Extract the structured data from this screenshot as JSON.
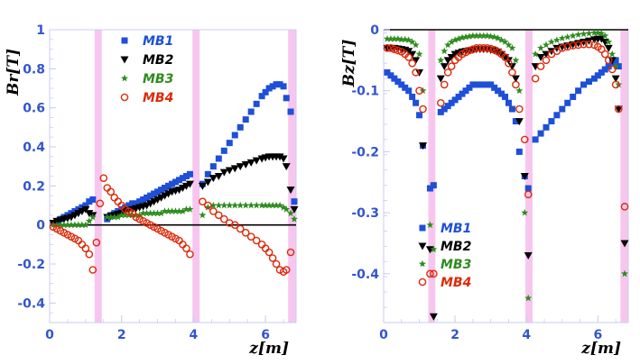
{
  "chart_data": [
    {
      "type": "scatter",
      "title": "",
      "xlabel": "z[m]",
      "ylabel": "Br[T]",
      "xlim": [
        0,
        6.85
      ],
      "ylim": [
        -0.5,
        1.0
      ],
      "x_ticks": [
        "0",
        "2",
        "4",
        "6"
      ],
      "y_ticks": [
        "-0.4",
        "-0.2",
        "0",
        "0.2",
        "0.4",
        "0.6",
        "0.8",
        "1"
      ],
      "gap_bands": [
        [
          1.25,
          1.45
        ],
        [
          3.97,
          4.17
        ],
        [
          6.63,
          6.85
        ]
      ],
      "zero_line": true,
      "legend_position": "top-center",
      "colors": {
        "MB1": "#1e4fd9",
        "MB2": "#000000",
        "MB3": "#2e8b1e",
        "MB4": "#dd2a0a",
        "gap": "#f7c6ee"
      },
      "series": [
        {
          "name": "MB1",
          "marker": "square",
          "x": [
            0.1,
            0.2,
            0.3,
            0.4,
            0.5,
            0.6,
            0.7,
            0.8,
            0.9,
            1.0,
            1.1,
            1.2,
            1.6,
            1.7,
            1.8,
            1.9,
            2.0,
            2.1,
            2.2,
            2.3,
            2.4,
            2.5,
            2.6,
            2.7,
            2.8,
            2.9,
            3.0,
            3.1,
            3.2,
            3.3,
            3.4,
            3.5,
            3.6,
            3.7,
            3.8,
            3.9,
            4.25,
            4.4,
            4.55,
            4.7,
            4.85,
            5.0,
            5.15,
            5.3,
            5.45,
            5.6,
            5.75,
            5.9,
            6.0,
            6.1,
            6.2,
            6.3,
            6.4,
            6.5,
            6.58,
            6.7,
            6.8
          ],
          "y": [
            0.01,
            0.02,
            0.03,
            0.04,
            0.05,
            0.06,
            0.07,
            0.08,
            0.09,
            0.1,
            0.12,
            0.13,
            0.03,
            0.05,
            0.06,
            0.07,
            0.08,
            0.09,
            0.1,
            0.11,
            0.11,
            0.12,
            0.13,
            0.14,
            0.15,
            0.16,
            0.17,
            0.18,
            0.19,
            0.2,
            0.21,
            0.22,
            0.23,
            0.24,
            0.25,
            0.26,
            0.21,
            0.26,
            0.3,
            0.34,
            0.38,
            0.42,
            0.46,
            0.5,
            0.54,
            0.58,
            0.62,
            0.66,
            0.68,
            0.7,
            0.71,
            0.72,
            0.72,
            0.71,
            0.65,
            0.58,
            0.12
          ]
        },
        {
          "name": "MB2",
          "marker": "triangle-down",
          "x": [
            0.1,
            0.2,
            0.3,
            0.4,
            0.5,
            0.6,
            0.7,
            0.8,
            0.9,
            1.0,
            1.1,
            1.2,
            1.6,
            1.7,
            1.8,
            1.9,
            2.0,
            2.1,
            2.2,
            2.3,
            2.4,
            2.5,
            2.6,
            2.7,
            2.8,
            2.9,
            3.0,
            3.1,
            3.2,
            3.3,
            3.4,
            3.5,
            3.6,
            3.7,
            3.8,
            3.9,
            4.25,
            4.4,
            4.55,
            4.7,
            4.85,
            5.0,
            5.15,
            5.3,
            5.45,
            5.6,
            5.75,
            5.9,
            6.0,
            6.1,
            6.2,
            6.3,
            6.4,
            6.5,
            6.58,
            6.7,
            6.8
          ],
          "y": [
            0.01,
            0.02,
            0.025,
            0.03,
            0.035,
            0.04,
            0.05,
            0.06,
            0.07,
            0.08,
            0.06,
            0.05,
            0.04,
            0.045,
            0.05,
            0.055,
            0.06,
            0.07,
            0.075,
            0.08,
            0.085,
            0.09,
            0.095,
            0.1,
            0.11,
            0.12,
            0.13,
            0.14,
            0.15,
            0.16,
            0.17,
            0.175,
            0.18,
            0.19,
            0.2,
            0.21,
            0.2,
            0.22,
            0.24,
            0.25,
            0.27,
            0.28,
            0.29,
            0.3,
            0.31,
            0.32,
            0.33,
            0.34,
            0.345,
            0.35,
            0.35,
            0.35,
            0.35,
            0.34,
            0.3,
            0.18,
            0.08
          ]
        },
        {
          "name": "MB3",
          "marker": "star",
          "x": [
            0.1,
            0.2,
            0.3,
            0.4,
            0.5,
            0.6,
            0.7,
            0.8,
            0.9,
            1.0,
            1.1,
            1.2,
            1.6,
            1.7,
            1.8,
            1.9,
            2.0,
            2.1,
            2.2,
            2.3,
            2.4,
            2.5,
            2.6,
            2.7,
            2.8,
            2.9,
            3.0,
            3.1,
            3.2,
            3.3,
            3.4,
            3.5,
            3.6,
            3.7,
            3.8,
            3.9,
            4.25,
            4.4,
            4.55,
            4.7,
            4.85,
            5.0,
            5.15,
            5.3,
            5.45,
            5.6,
            5.75,
            5.9,
            6.0,
            6.1,
            6.2,
            6.3,
            6.4,
            6.5,
            6.58,
            6.7,
            6.8
          ],
          "y": [
            0.0,
            0.0,
            0.0,
            0.0,
            0.0,
            0.0,
            0.0,
            0.0,
            0.0,
            0.0,
            0.02,
            0.04,
            0.04,
            0.04,
            0.04,
            0.04,
            0.05,
            0.05,
            0.05,
            0.05,
            0.05,
            0.05,
            0.06,
            0.06,
            0.06,
            0.06,
            0.06,
            0.06,
            0.07,
            0.07,
            0.07,
            0.07,
            0.07,
            0.07,
            0.08,
            0.08,
            0.05,
            0.09,
            0.1,
            0.1,
            0.1,
            0.1,
            0.1,
            0.1,
            0.1,
            0.1,
            0.1,
            0.1,
            0.1,
            0.1,
            0.1,
            0.1,
            0.1,
            0.09,
            0.08,
            0.06,
            0.03
          ]
        },
        {
          "name": "MB4",
          "marker": "circle-open",
          "x": [
            0.1,
            0.2,
            0.3,
            0.4,
            0.5,
            0.6,
            0.7,
            0.8,
            0.9,
            1.0,
            1.1,
            1.2,
            1.3,
            1.4,
            1.5,
            1.6,
            1.7,
            1.8,
            1.9,
            2.0,
            2.1,
            2.2,
            2.3,
            2.4,
            2.5,
            2.6,
            2.7,
            2.8,
            2.9,
            3.0,
            3.1,
            3.2,
            3.3,
            3.4,
            3.5,
            3.6,
            3.7,
            3.8,
            3.9,
            4.25,
            4.4,
            4.55,
            4.7,
            4.85,
            5.0,
            5.15,
            5.3,
            5.45,
            5.6,
            5.75,
            5.9,
            6.0,
            6.1,
            6.2,
            6.3,
            6.4,
            6.5,
            6.58,
            6.7
          ],
          "y": [
            -0.01,
            -0.02,
            -0.03,
            -0.04,
            -0.05,
            -0.06,
            -0.07,
            -0.08,
            -0.1,
            -0.12,
            -0.15,
            -0.23,
            -0.09,
            0.11,
            0.24,
            0.19,
            0.17,
            0.14,
            0.12,
            0.1,
            0.08,
            0.07,
            0.06,
            0.04,
            0.03,
            0.02,
            0.01,
            0.0,
            -0.01,
            -0.02,
            -0.03,
            -0.04,
            -0.05,
            -0.06,
            -0.07,
            -0.08,
            -0.1,
            -0.12,
            -0.15,
            0.12,
            0.1,
            0.07,
            0.05,
            0.03,
            0.01,
            0.0,
            -0.02,
            -0.04,
            -0.06,
            -0.08,
            -0.1,
            -0.12,
            -0.14,
            -0.17,
            -0.2,
            -0.23,
            -0.24,
            -0.23,
            -0.14
          ]
        }
      ]
    },
    {
      "type": "scatter",
      "title": "",
      "xlabel": "z[m]",
      "ylabel": "Bz[T]",
      "xlim": [
        0,
        6.85
      ],
      "ylim": [
        -0.48,
        0.0
      ],
      "x_ticks": [
        "0",
        "2",
        "4",
        "6"
      ],
      "y_ticks": [
        "-0.4",
        "-0.3",
        "-0.2",
        "-0.1",
        "0"
      ],
      "gap_bands": [
        [
          1.25,
          1.45
        ],
        [
          3.97,
          4.17
        ],
        [
          6.63,
          6.85
        ]
      ],
      "zero_line": true,
      "legend_position": "bottom-center",
      "colors": {
        "MB1": "#1e4fd9",
        "MB2": "#000000",
        "MB3": "#2e8b1e",
        "MB4": "#dd2a0a",
        "gap": "#f7c6ee"
      },
      "series": [
        {
          "name": "MB1",
          "marker": "square",
          "x": [
            0.1,
            0.2,
            0.3,
            0.4,
            0.5,
            0.6,
            0.7,
            0.8,
            0.9,
            1.0,
            1.1,
            1.3,
            1.4,
            1.6,
            1.7,
            1.8,
            1.9,
            2.0,
            2.1,
            2.2,
            2.3,
            2.4,
            2.5,
            2.6,
            2.7,
            2.8,
            2.9,
            3.0,
            3.1,
            3.2,
            3.3,
            3.4,
            3.5,
            3.6,
            3.7,
            3.8,
            3.95,
            4.05,
            4.25,
            4.4,
            4.55,
            4.7,
            4.85,
            5.0,
            5.15,
            5.3,
            5.45,
            5.6,
            5.75,
            5.9,
            6.0,
            6.1,
            6.2,
            6.3,
            6.4,
            6.5,
            6.58
          ],
          "y": [
            -0.07,
            -0.075,
            -0.08,
            -0.085,
            -0.09,
            -0.095,
            -0.1,
            -0.11,
            -0.12,
            -0.14,
            -0.19,
            -0.26,
            -0.255,
            -0.135,
            -0.13,
            -0.125,
            -0.12,
            -0.115,
            -0.11,
            -0.105,
            -0.1,
            -0.095,
            -0.09,
            -0.09,
            -0.09,
            -0.09,
            -0.09,
            -0.09,
            -0.095,
            -0.1,
            -0.105,
            -0.11,
            -0.12,
            -0.13,
            -0.15,
            -0.2,
            -0.24,
            -0.26,
            -0.18,
            -0.17,
            -0.16,
            -0.15,
            -0.14,
            -0.13,
            -0.12,
            -0.11,
            -0.1,
            -0.09,
            -0.085,
            -0.08,
            -0.075,
            -0.07,
            -0.065,
            -0.06,
            -0.055,
            -0.05,
            -0.06
          ]
        },
        {
          "name": "MB2",
          "marker": "triangle-down",
          "x": [
            0.1,
            0.2,
            0.3,
            0.4,
            0.5,
            0.6,
            0.7,
            0.8,
            0.9,
            1.0,
            1.1,
            1.3,
            1.4,
            1.6,
            1.7,
            1.8,
            1.9,
            2.0,
            2.1,
            2.2,
            2.3,
            2.4,
            2.5,
            2.6,
            2.7,
            2.8,
            2.9,
            3.0,
            3.1,
            3.2,
            3.3,
            3.4,
            3.5,
            3.6,
            3.7,
            3.8,
            3.95,
            4.05,
            4.25,
            4.4,
            4.55,
            4.7,
            4.85,
            5.0,
            5.15,
            5.3,
            5.45,
            5.6,
            5.75,
            5.9,
            6.0,
            6.1,
            6.2,
            6.3,
            6.4,
            6.5,
            6.58,
            6.75
          ],
          "y": [
            -0.03,
            -0.03,
            -0.03,
            -0.031,
            -0.032,
            -0.033,
            -0.035,
            -0.04,
            -0.05,
            -0.07,
            -0.19,
            -0.36,
            -0.47,
            -0.08,
            -0.06,
            -0.05,
            -0.045,
            -0.04,
            -0.038,
            -0.036,
            -0.035,
            -0.034,
            -0.033,
            -0.032,
            -0.032,
            -0.032,
            -0.032,
            -0.033,
            -0.034,
            -0.036,
            -0.04,
            -0.045,
            -0.05,
            -0.06,
            -0.08,
            -0.15,
            -0.24,
            -0.37,
            -0.06,
            -0.045,
            -0.04,
            -0.035,
            -0.03,
            -0.028,
            -0.026,
            -0.024,
            -0.022,
            -0.02,
            -0.018,
            -0.016,
            -0.015,
            -0.015,
            -0.02,
            -0.03,
            -0.05,
            -0.08,
            -0.13,
            -0.35
          ]
        },
        {
          "name": "MB3",
          "marker": "star",
          "x": [
            0.1,
            0.2,
            0.3,
            0.4,
            0.5,
            0.6,
            0.7,
            0.8,
            0.9,
            1.0,
            1.1,
            1.3,
            1.4,
            1.6,
            1.7,
            1.8,
            1.9,
            2.0,
            2.1,
            2.2,
            2.3,
            2.4,
            2.5,
            2.6,
            2.7,
            2.8,
            2.9,
            3.0,
            3.1,
            3.2,
            3.3,
            3.4,
            3.5,
            3.6,
            3.7,
            3.8,
            3.95,
            4.05,
            4.25,
            4.4,
            4.55,
            4.7,
            4.85,
            5.0,
            5.15,
            5.3,
            5.45,
            5.6,
            5.75,
            5.9,
            6.0,
            6.1,
            6.2,
            6.3,
            6.4,
            6.5,
            6.58,
            6.75
          ],
          "y": [
            -0.015,
            -0.015,
            -0.015,
            -0.015,
            -0.016,
            -0.016,
            -0.017,
            -0.02,
            -0.025,
            -0.04,
            -0.1,
            -0.32,
            -0.36,
            -0.05,
            -0.035,
            -0.025,
            -0.02,
            -0.017,
            -0.015,
            -0.013,
            -0.012,
            -0.011,
            -0.01,
            -0.01,
            -0.01,
            -0.01,
            -0.01,
            -0.011,
            -0.012,
            -0.014,
            -0.017,
            -0.02,
            -0.025,
            -0.03,
            -0.05,
            -0.1,
            -0.3,
            -0.44,
            -0.04,
            -0.03,
            -0.025,
            -0.02,
            -0.017,
            -0.014,
            -0.012,
            -0.01,
            -0.008,
            -0.007,
            -0.006,
            -0.005,
            -0.005,
            -0.006,
            -0.01,
            -0.02,
            -0.04,
            -0.06,
            -0.09,
            -0.4
          ]
        },
        {
          "name": "MB4",
          "marker": "circle-open",
          "x": [
            0.1,
            0.2,
            0.3,
            0.4,
            0.5,
            0.6,
            0.7,
            0.8,
            0.9,
            1.0,
            1.1,
            1.3,
            1.4,
            1.6,
            1.7,
            1.8,
            1.9,
            2.0,
            2.1,
            2.2,
            2.3,
            2.4,
            2.5,
            2.6,
            2.7,
            2.8,
            2.9,
            3.0,
            3.1,
            3.2,
            3.3,
            3.4,
            3.5,
            3.6,
            3.7,
            3.8,
            3.95,
            4.05,
            4.25,
            4.4,
            4.55,
            4.7,
            4.85,
            5.0,
            5.15,
            5.3,
            5.45,
            5.6,
            5.75,
            5.9,
            6.0,
            6.1,
            6.2,
            6.3,
            6.4,
            6.5,
            6.58,
            6.75
          ],
          "y": [
            -0.03,
            -0.03,
            -0.032,
            -0.034,
            -0.036,
            -0.04,
            -0.045,
            -0.055,
            -0.07,
            -0.1,
            -0.13,
            -0.4,
            -0.4,
            -0.12,
            -0.09,
            -0.07,
            -0.06,
            -0.05,
            -0.045,
            -0.04,
            -0.037,
            -0.034,
            -0.032,
            -0.03,
            -0.03,
            -0.03,
            -0.03,
            -0.031,
            -0.033,
            -0.036,
            -0.04,
            -0.045,
            -0.055,
            -0.07,
            -0.09,
            -0.13,
            -0.18,
            -0.27,
            -0.08,
            -0.06,
            -0.05,
            -0.04,
            -0.035,
            -0.03,
            -0.028,
            -0.026,
            -0.025,
            -0.024,
            -0.024,
            -0.025,
            -0.028,
            -0.032,
            -0.04,
            -0.05,
            -0.065,
            -0.09,
            -0.13,
            -0.29
          ]
        }
      ]
    }
  ]
}
